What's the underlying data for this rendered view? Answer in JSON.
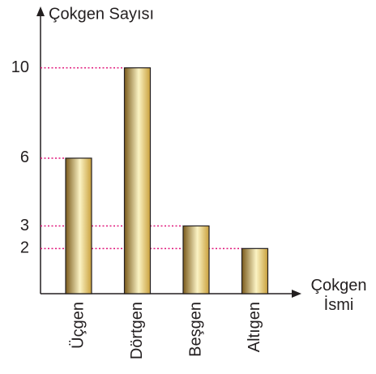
{
  "chart_data": {
    "type": "bar",
    "y_label": "Çokgen Sayısı",
    "x_label": "Çokgen İsmi",
    "categories": [
      "Üçgen",
      "Dörtgen",
      "Beşgen",
      "Altıgen"
    ],
    "values": [
      6,
      10,
      3,
      2
    ],
    "color": "#c9a03c",
    "ylim": [
      0,
      12.5
    ],
    "yticks": [
      2,
      3,
      6,
      10
    ],
    "guide_color": "#e0157a"
  }
}
